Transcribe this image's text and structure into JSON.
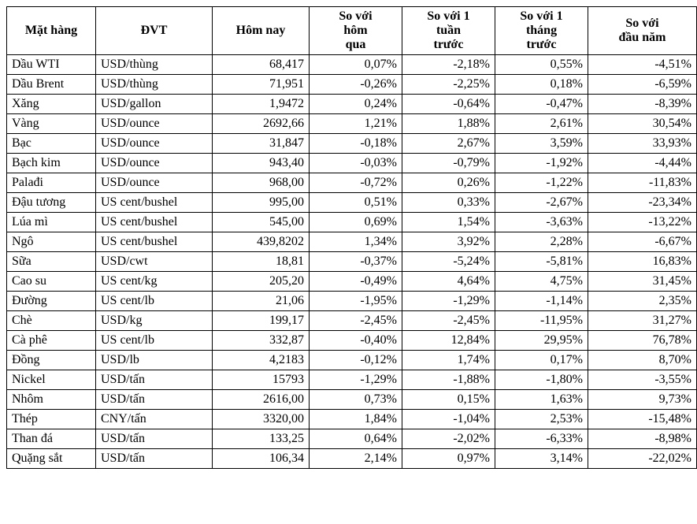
{
  "table": {
    "columns": [
      {
        "key": "name",
        "label": "Mặt hàng",
        "class": "col-name"
      },
      {
        "key": "unit",
        "label": "ĐVT",
        "class": "col-unit"
      },
      {
        "key": "today",
        "label": "Hôm nay",
        "class": "col-today"
      },
      {
        "key": "d",
        "label": "So với\nhôm\nqua",
        "class": "col-d"
      },
      {
        "key": "w",
        "label": "So với 1\ntuần\ntrước",
        "class": "col-w"
      },
      {
        "key": "m",
        "label": "So với 1\ntháng\ntrước",
        "class": "col-m"
      },
      {
        "key": "y",
        "label": "So với\nđầu năm",
        "class": "col-y"
      }
    ],
    "rows": [
      {
        "name": "Dầu WTI",
        "unit": "USD/thùng",
        "today": "68,417",
        "d": "0,07%",
        "w": "-2,18%",
        "m": "0,55%",
        "y": "-4,51%"
      },
      {
        "name": "Dầu Brent",
        "unit": "USD/thùng",
        "today": "71,951",
        "d": "-0,26%",
        "w": "-2,25%",
        "m": "0,18%",
        "y": "-6,59%"
      },
      {
        "name": "Xăng",
        "unit": "USD/gallon",
        "today": "1,9472",
        "d": "0,24%",
        "w": "-0,64%",
        "m": "-0,47%",
        "y": "-8,39%"
      },
      {
        "name": "Vàng",
        "unit": "USD/ounce",
        "today": "2692,66",
        "d": "1,21%",
        "w": "1,88%",
        "m": "2,61%",
        "y": "30,54%"
      },
      {
        "name": "Bạc",
        "unit": "USD/ounce",
        "today": "31,847",
        "d": "-0,18%",
        "w": "2,67%",
        "m": "3,59%",
        "y": "33,93%"
      },
      {
        "name": "Bạch kim",
        "unit": "USD/ounce",
        "today": "943,40",
        "d": "-0,03%",
        "w": "-0,79%",
        "m": "-1,92%",
        "y": "-4,44%"
      },
      {
        "name": "Palađi",
        "unit": "USD/ounce",
        "today": "968,00",
        "d": "-0,72%",
        "w": "0,26%",
        "m": "-1,22%",
        "y": "-11,83%"
      },
      {
        "name": "Đậu tương",
        "unit": "US cent/bushel",
        "today": "995,00",
        "d": "0,51%",
        "w": "0,33%",
        "m": "-2,67%",
        "y": "-23,34%"
      },
      {
        "name": "Lúa mì",
        "unit": "US cent/bushel",
        "today": "545,00",
        "d": "0,69%",
        "w": "1,54%",
        "m": "-3,63%",
        "y": "-13,22%"
      },
      {
        "name": "Ngô",
        "unit": "US cent/bushel",
        "today": "439,8202",
        "d": "1,34%",
        "w": "3,92%",
        "m": "2,28%",
        "y": "-6,67%"
      },
      {
        "name": "Sữa",
        "unit": "USD/cwt",
        "today": "18,81",
        "d": "-0,37%",
        "w": "-5,24%",
        "m": "-5,81%",
        "y": "16,83%"
      },
      {
        "name": "Cao su",
        "unit": "US cent/kg",
        "today": "205,20",
        "d": "-0,49%",
        "w": "4,64%",
        "m": "4,75%",
        "y": "31,45%"
      },
      {
        "name": "Đường",
        "unit": "US cent/lb",
        "today": "21,06",
        "d": "-1,95%",
        "w": "-1,29%",
        "m": "-1,14%",
        "y": "2,35%"
      },
      {
        "name": "Chè",
        "unit": "USD/kg",
        "today": "199,17",
        "d": "-2,45%",
        "w": "-2,45%",
        "m": "-11,95%",
        "y": "31,27%"
      },
      {
        "name": "Cà phê",
        "unit": "US cent/lb",
        "today": "332,87",
        "d": "-0,40%",
        "w": "12,84%",
        "m": "29,95%",
        "y": "76,78%"
      },
      {
        "name": "Đồng",
        "unit": "USD/lb",
        "today": "4,2183",
        "d": "-0,12%",
        "w": "1,74%",
        "m": "0,17%",
        "y": "8,70%"
      },
      {
        "name": "Nickel",
        "unit": "USD/tấn",
        "today": "15793",
        "d": "-1,29%",
        "w": "-1,88%",
        "m": "-1,80%",
        "y": "-3,55%"
      },
      {
        "name": "Nhôm",
        "unit": "USD/tấn",
        "today": "2616,00",
        "d": "0,73%",
        "w": "0,15%",
        "m": "1,63%",
        "y": "9,73%"
      },
      {
        "name": "Thép",
        "unit": "CNY/tấn",
        "today": "3320,00",
        "d": "1,84%",
        "w": "-1,04%",
        "m": "2,53%",
        "y": "-15,48%"
      },
      {
        "name": "Than đá",
        "unit": "USD/tấn",
        "today": "133,25",
        "d": "0,64%",
        "w": "-2,02%",
        "m": "-6,33%",
        "y": "-8,98%"
      },
      {
        "name": "Quặng sắt",
        "unit": "USD/tấn",
        "today": "106,34",
        "d": "2,14%",
        "w": "0,97%",
        "m": "3,14%",
        "y": "-22,02%"
      }
    ],
    "style": {
      "font_family": "Times New Roman",
      "font_size_pt": 12,
      "border_color": "#000000",
      "background_color": "#ffffff",
      "text_color": "#000000",
      "header_font_weight": "bold"
    }
  }
}
